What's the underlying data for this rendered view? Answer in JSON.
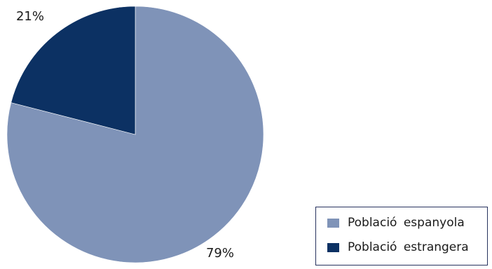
{
  "chart_data": {
    "type": "pie",
    "title": "",
    "categories": [
      "Població espanyola",
      "Població estrangera"
    ],
    "values": [
      79,
      21
    ],
    "value_labels": [
      "79%",
      "21%"
    ],
    "colors": [
      "#7f93b8",
      "#0c3163"
    ],
    "start_angle": "12 o'clock",
    "direction": "clockwise",
    "legend_position": "bottom-right"
  }
}
